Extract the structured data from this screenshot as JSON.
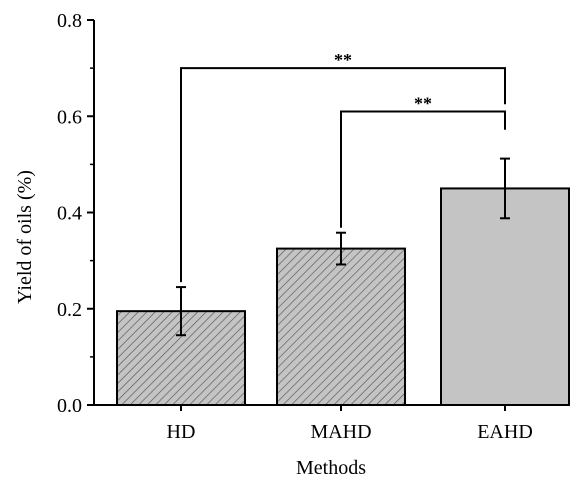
{
  "chart_data": {
    "type": "bar",
    "title": "",
    "xlabel": "Methods",
    "ylabel": "Yield of oils (%)",
    "ylim": [
      0,
      0.8
    ],
    "yticks": [
      "0.0",
      "0.2",
      "0.4",
      "0.6",
      "0.8"
    ],
    "categories": [
      "HD",
      "MAHD",
      "EAHD"
    ],
    "values": [
      0.195,
      0.325,
      0.45
    ],
    "errors": [
      0.05,
      0.033,
      0.062
    ],
    "bar_fills": [
      "hatched",
      "hatched",
      "solid"
    ],
    "bar_color": "#c4c4c4",
    "grid": false,
    "significance": [
      {
        "from": "HD",
        "to": "EAHD",
        "label": "**"
      },
      {
        "from": "MAHD",
        "to": "EAHD",
        "label": "**"
      }
    ]
  }
}
